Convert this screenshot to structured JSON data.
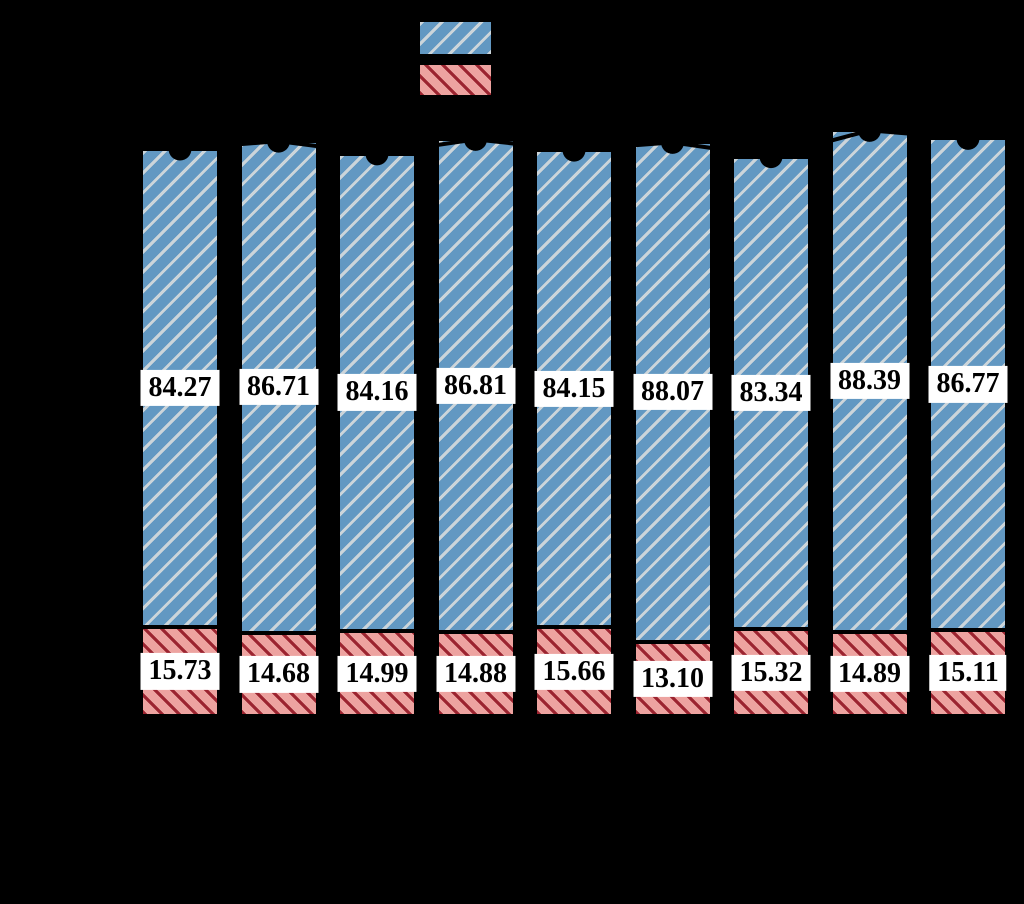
{
  "chart_data": {
    "type": "bar",
    "variant": "stacked-vertical",
    "background_color": "#000000",
    "grid": "off",
    "categories": [
      "",
      "",
      "",
      "",
      "",
      "",
      "",
      "",
      ""
    ],
    "series": [
      {
        "name": "upper-blue-hatched",
        "hatch": "/",
        "fill_color": "#6298c2",
        "hatch_color": "#ccd5da",
        "edge_color": "#000000",
        "values": [
          84.27,
          86.71,
          84.16,
          86.81,
          84.15,
          88.07,
          83.34,
          88.39,
          86.77
        ],
        "labels": [
          "84.27",
          "86.71",
          "84.16",
          "86.81",
          "84.15",
          "88.07",
          "83.34",
          "88.39",
          "86.77"
        ]
      },
      {
        "name": "lower-red-hatched",
        "hatch": "\\",
        "fill_color": "#eda3a0",
        "hatch_color": "#9c2430",
        "edge_color": "#000000",
        "values": [
          15.73,
          14.68,
          14.99,
          14.88,
          15.66,
          13.1,
          15.32,
          14.89,
          15.11
        ],
        "labels": [
          "15.73",
          "14.68",
          "14.99",
          "14.88",
          "15.66",
          "13.10",
          "15.32",
          "14.89",
          "15.11"
        ]
      }
    ],
    "value_label_style": {
      "text_color": "#000000",
      "box_color": "#ffffff",
      "bold": true
    },
    "line_overlay": {
      "color": "#000000",
      "marker": "circle",
      "comment_values_are_stack_totals": true,
      "values": [
        100.0,
        101.39,
        99.15,
        101.69,
        99.81,
        101.17,
        98.66,
        103.28,
        101.88
      ]
    },
    "legend": {
      "position": "top-center",
      "entries": [
        {
          "series": "upper-blue-hatched",
          "label": ""
        },
        {
          "series": "lower-red-hatched",
          "label": ""
        }
      ]
    },
    "baseline_value": 0
  }
}
